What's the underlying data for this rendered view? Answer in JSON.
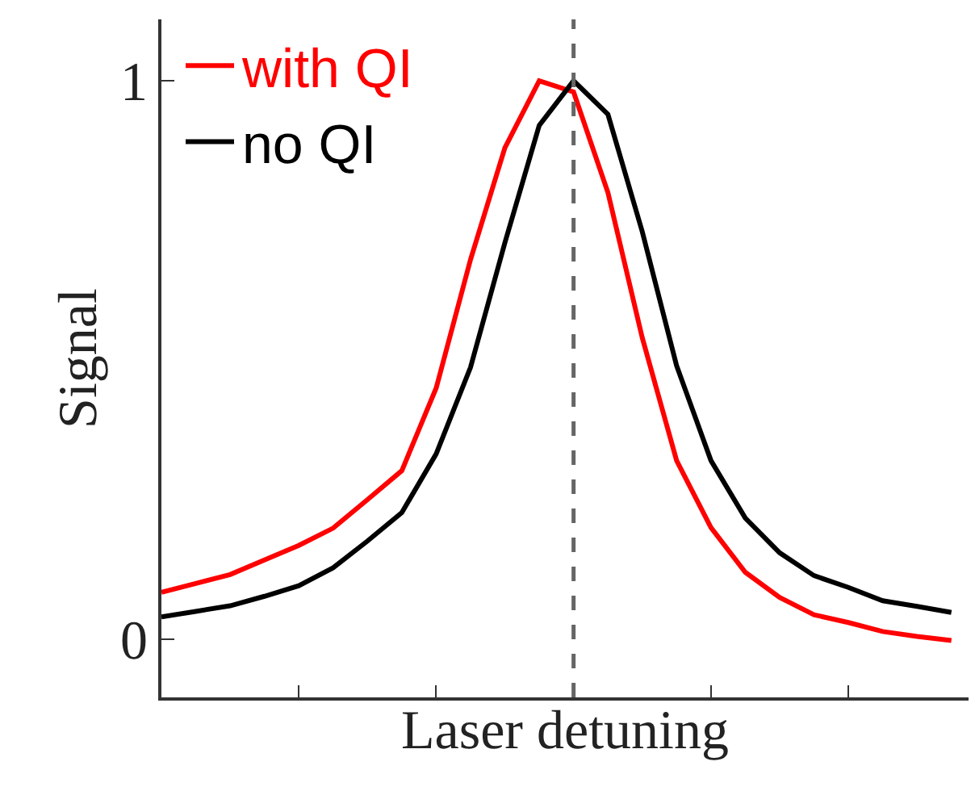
{
  "chart_data": {
    "type": "line",
    "xlabel": "Laser detuning",
    "ylabel": "Signal",
    "categories": [
      null,
      null,
      null,
      null,
      null,
      null,
      null,
      null,
      null,
      null,
      null,
      null,
      null,
      null,
      null,
      null,
      null,
      null,
      null,
      null,
      null,
      null,
      null,
      null
    ],
    "ylim": [
      -0.104,
      1.11
    ],
    "yticks": [
      0,
      1
    ],
    "legend": "top left",
    "marker": "none",
    "line_style": "solid",
    "series": [
      {
        "name": "with QI",
        "color": "#ff0000",
        "values": [
          0.084,
          0.1,
          0.116,
          0.142,
          0.168,
          0.199,
          0.25,
          0.302,
          0.45,
          0.68,
          0.88,
          1.0,
          0.98,
          0.8,
          0.54,
          0.32,
          0.2,
          0.12,
          0.075,
          0.044,
          0.03,
          0.014,
          0.005,
          -0.002
        ]
      },
      {
        "name": "no QI",
        "color": "#000000",
        "values": [
          0.04,
          0.05,
          0.06,
          0.077,
          0.096,
          0.128,
          0.176,
          0.227,
          0.332,
          0.487,
          0.71,
          0.92,
          1.0,
          0.94,
          0.73,
          0.49,
          0.32,
          0.217,
          0.155,
          0.114,
          0.093,
          0.069,
          0.059,
          0.048
        ]
      }
    ]
  }
}
